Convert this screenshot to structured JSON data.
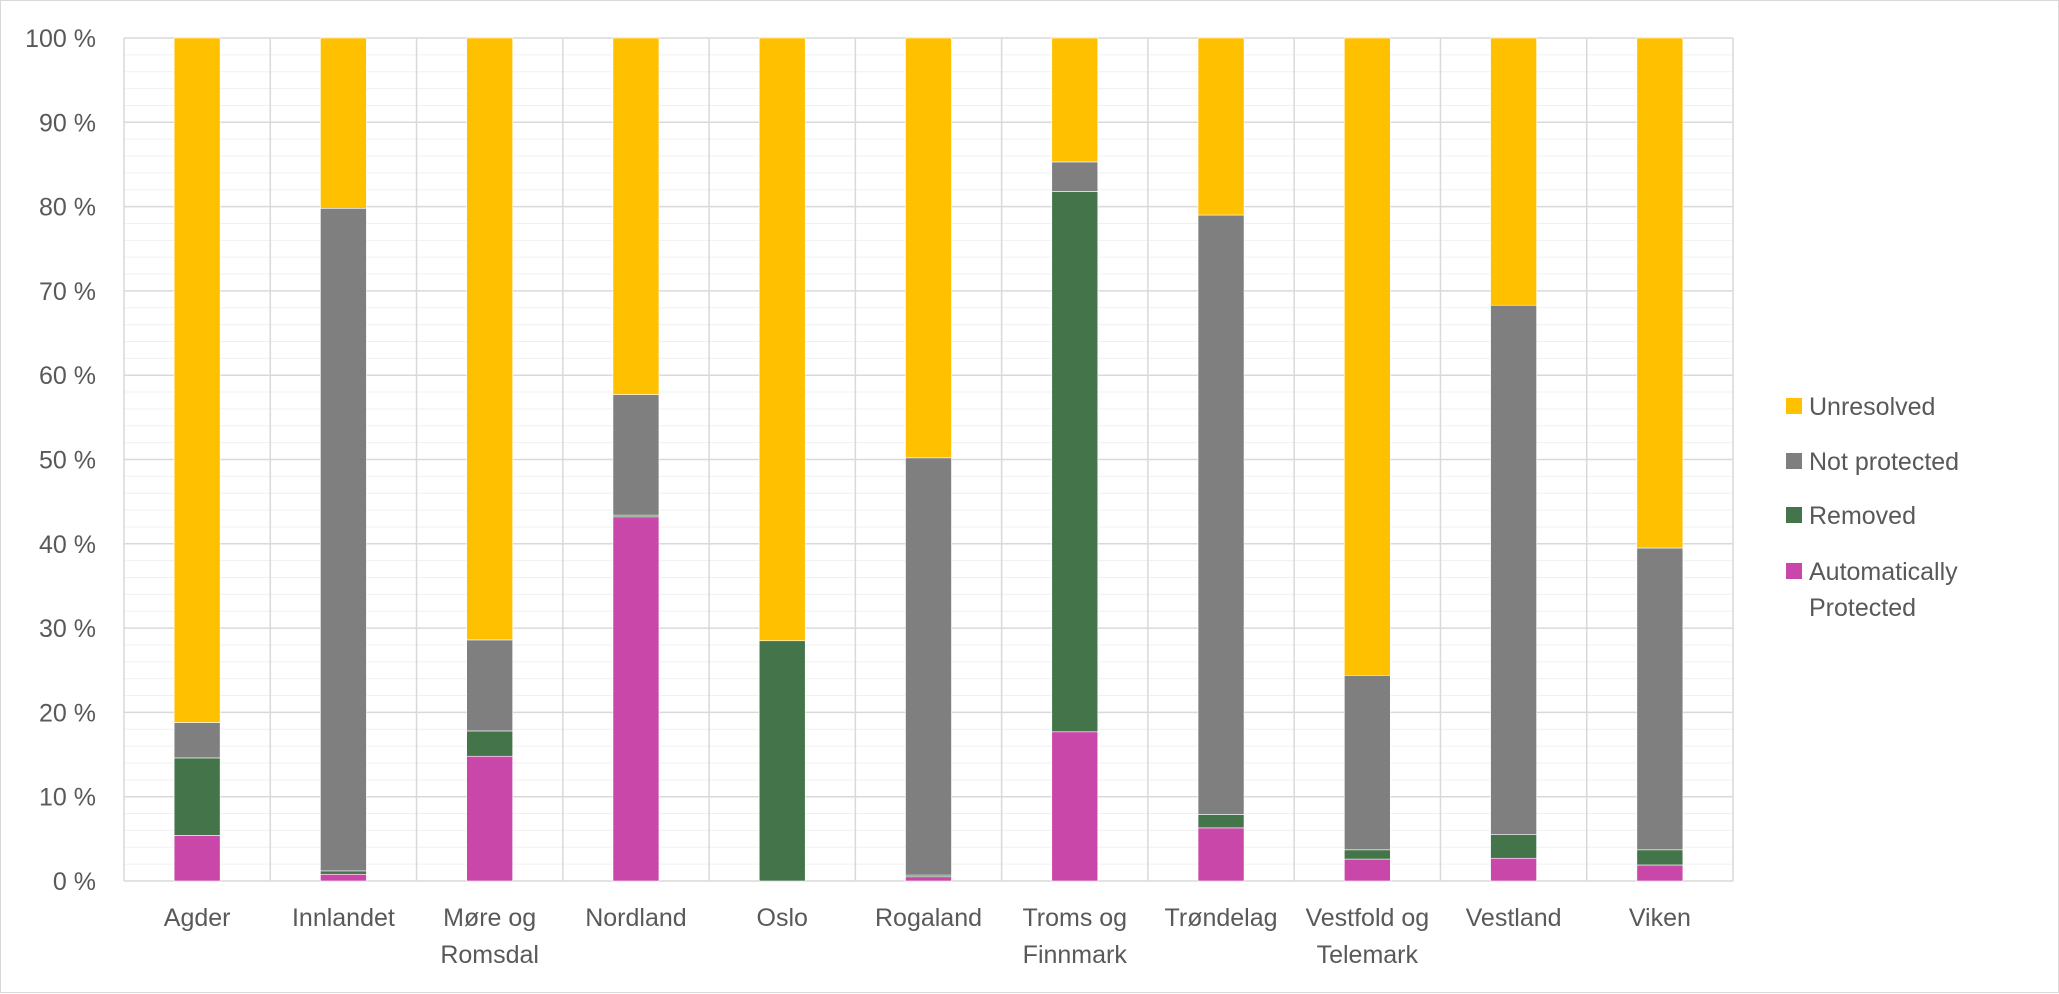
{
  "chart_data": {
    "type": "bar",
    "stacked": true,
    "percent": true,
    "title": "",
    "xlabel": "",
    "ylabel": "",
    "ylim": [
      0,
      100
    ],
    "y_ticks": [
      "0 %",
      "10 %",
      "20 %",
      "30 %",
      "40 %",
      "50 %",
      "60 %",
      "70 %",
      "80 %",
      "90 %",
      "100 %"
    ],
    "grid": true,
    "legend_position": "right",
    "categories": [
      [
        "Agder"
      ],
      [
        "Innlandet"
      ],
      [
        "Møre og",
        "Romsdal"
      ],
      [
        "Nordland"
      ],
      [
        "Oslo"
      ],
      [
        "Rogaland"
      ],
      [
        "Troms og",
        "Finnmark"
      ],
      [
        "Trøndelag"
      ],
      [
        "Vestfold og",
        "Telemark"
      ],
      [
        "Vestland"
      ],
      [
        "Viken"
      ]
    ],
    "series": [
      {
        "name": [
          "Automatically",
          "Protected"
        ],
        "color": "#c847a8",
        "values": [
          5.4,
          0.8,
          14.8,
          43.2,
          0,
          0.5,
          17.7,
          6.3,
          2.6,
          2.7,
          1.9
        ]
      },
      {
        "name": [
          "Removed"
        ],
        "color": "#44744a",
        "values": [
          9.2,
          0.4,
          3.0,
          0.2,
          28.5,
          0.2,
          64.1,
          1.6,
          1.1,
          2.8,
          1.8
        ]
      },
      {
        "name": [
          "Not protected"
        ],
        "color": "#7f7f7f",
        "values": [
          4.2,
          78.6,
          10.8,
          14.3,
          0,
          49.5,
          3.5,
          71.1,
          20.7,
          62.8,
          35.8
        ]
      },
      {
        "name": [
          "Unresolved"
        ],
        "color": "#ffc000",
        "values": [
          81.2,
          20.2,
          71.4,
          42.3,
          71.5,
          49.8,
          14.7,
          21.0,
          75.6,
          31.7,
          60.5
        ]
      }
    ]
  }
}
